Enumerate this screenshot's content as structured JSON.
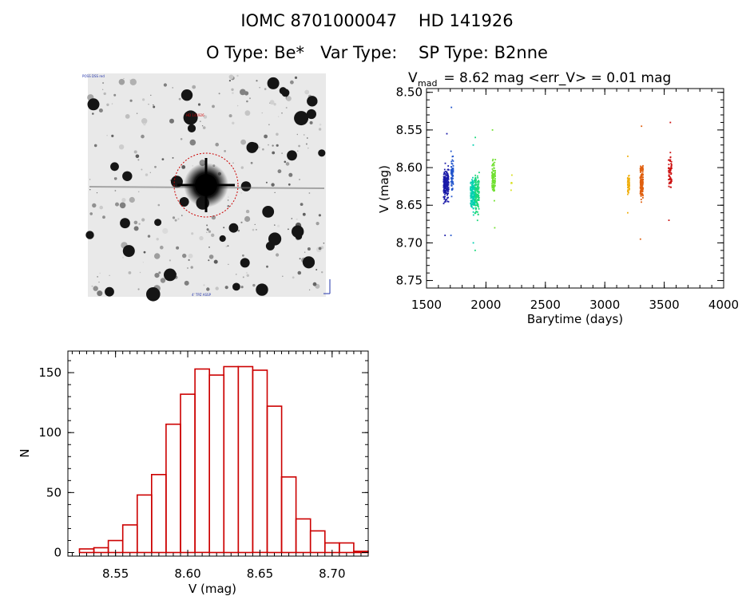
{
  "header": {
    "line1": "IOMC 8701000047    HD 141926",
    "line2": "O Type: Be*   Var Type:    SP Type: B2nne"
  },
  "finder_chart": {
    "corner_top_left": "POSS DSS red",
    "label_top": "HD 141926",
    "label_bottom": "4' TPZ ASSP"
  },
  "chart_data": [
    {
      "type": "scatter",
      "title_main": "V",
      "title_sub": "mad",
      "title_rest": " = 8.62 mag <err_V> = 0.01 mag",
      "xlabel": "Barytime (days)",
      "ylabel": "V (mag)",
      "xlim": [
        1500,
        4000
      ],
      "ylim": [
        8.76,
        8.495
      ],
      "xticks": [
        "1500",
        "2000",
        "2500",
        "3000",
        "3500",
        "4000"
      ],
      "yticks": [
        "8.50",
        "8.55",
        "8.60",
        "8.65",
        "8.70",
        "8.75"
      ],
      "series": [
        {
          "name": "g1",
          "color": "#1a1aa8",
          "x_center": 1665,
          "x_spread": 22,
          "y_lo": 8.555,
          "y_hi": 8.69,
          "n": 170
        },
        {
          "name": "g2",
          "color": "#2255cc",
          "x_center": 1715,
          "x_spread": 10,
          "y_lo": 8.52,
          "y_hi": 8.69,
          "n": 80
        },
        {
          "name": "g3",
          "color": "#00d0b0",
          "x_center": 1890,
          "x_spread": 20,
          "y_lo": 8.57,
          "y_hi": 8.7,
          "n": 150
        },
        {
          "name": "g4",
          "color": "#1ad87a",
          "x_center": 1925,
          "x_spread": 18,
          "y_lo": 8.56,
          "y_hi": 8.71,
          "n": 130
        },
        {
          "name": "g5",
          "color": "#70e030",
          "x_center": 2065,
          "x_spread": 14,
          "y_lo": 8.55,
          "y_hi": 8.68,
          "n": 90
        },
        {
          "name": "g6",
          "color": "#d8e020",
          "x_center": 2215,
          "x_spread": 4,
          "y_lo": 8.61,
          "y_hi": 8.63,
          "n": 6
        },
        {
          "name": "g7",
          "color": "#f0b010",
          "x_center": 3200,
          "x_spread": 8,
          "y_lo": 8.585,
          "y_hi": 8.66,
          "n": 60
        },
        {
          "name": "g8",
          "color": "#e06010",
          "x_center": 3310,
          "x_spread": 12,
          "y_lo": 8.545,
          "y_hi": 8.695,
          "n": 140
        },
        {
          "name": "g9",
          "color": "#cc1010",
          "x_center": 3550,
          "x_spread": 14,
          "y_lo": 8.54,
          "y_hi": 8.67,
          "n": 60
        }
      ]
    },
    {
      "type": "bar",
      "title": "",
      "xlabel": "V (mag)",
      "ylabel": "N",
      "xlim": [
        8.517,
        8.725
      ],
      "ylim": [
        -3,
        168
      ],
      "xticks": [
        "8.55",
        "8.60",
        "8.65",
        "8.70"
      ],
      "yticks": [
        "0",
        "50",
        "100",
        "150"
      ],
      "bin_start": 8.525,
      "bin_width": 0.01,
      "values": [
        3,
        4,
        10,
        23,
        48,
        65,
        107,
        132,
        153,
        148,
        155,
        155,
        152,
        122,
        63,
        28,
        18,
        8,
        8,
        1
      ],
      "color": "#cc0000"
    }
  ]
}
